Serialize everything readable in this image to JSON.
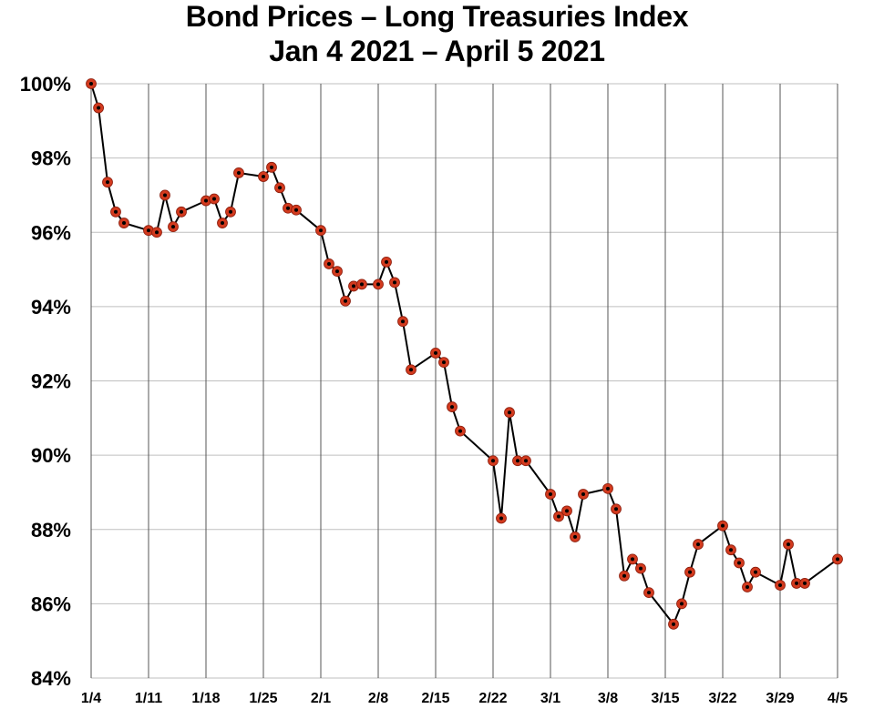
{
  "chart_data": {
    "type": "line",
    "title": "Bond Prices – Long Treasuries Index",
    "subtitle": "Jan 4 2021 – April 5 2021",
    "xlabel": "",
    "ylabel": "",
    "ylim": [
      84,
      100
    ],
    "yticks": [
      84,
      86,
      88,
      90,
      92,
      94,
      96,
      98,
      100
    ],
    "ytick_labels": [
      "84%",
      "86%",
      "88%",
      "90%",
      "92%",
      "94%",
      "96%",
      "98%",
      "100%"
    ],
    "xlim": [
      0,
      91
    ],
    "xticks": [
      0,
      7,
      14,
      21,
      28,
      35,
      42,
      49,
      56,
      63,
      70,
      77,
      84,
      91
    ],
    "xtick_labels": [
      "1/4",
      "1/11",
      "1/18",
      "1/25",
      "2/1",
      "2/8",
      "2/15",
      "2/22",
      "3/1",
      "3/8",
      "3/15",
      "3/22",
      "3/29",
      "4/5"
    ],
    "grid": true,
    "colors": {
      "line": "#000000",
      "marker_fill": "#d23a1e",
      "marker_center": "#000000",
      "grid": "#bfbfbf",
      "vgrid": "#555555"
    },
    "series": [
      {
        "name": "Long Treasuries Index",
        "x": [
          0,
          0.9,
          2,
          3,
          4,
          7,
          8,
          9,
          10,
          11,
          14,
          15,
          16,
          17,
          18,
          21,
          22,
          23,
          24,
          25,
          28,
          29,
          30,
          31,
          32,
          33,
          35,
          36,
          37,
          38,
          39,
          42,
          43,
          44,
          45,
          49,
          50,
          51,
          52,
          53,
          56,
          57,
          58,
          59,
          60,
          63,
          64,
          65,
          66,
          67,
          68,
          71,
          72,
          73,
          74,
          77,
          78,
          79,
          80,
          81,
          84,
          85,
          86,
          87,
          91
        ],
        "y": [
          100,
          99.35,
          97.35,
          96.55,
          96.25,
          96.05,
          96.0,
          97.0,
          96.15,
          96.55,
          96.85,
          96.9,
          96.25,
          96.55,
          97.6,
          97.5,
          97.75,
          97.2,
          96.65,
          96.6,
          96.05,
          95.15,
          94.95,
          94.15,
          94.55,
          94.6,
          94.6,
          95.2,
          94.65,
          93.6,
          92.3,
          92.75,
          92.5,
          91.3,
          90.65,
          89.85,
          88.3,
          91.15,
          89.85,
          89.85,
          88.95,
          88.35,
          88.5,
          87.8,
          88.95,
          89.1,
          88.55,
          86.75,
          87.2,
          86.95,
          86.3,
          85.45,
          86.0,
          86.85,
          87.6,
          88.1,
          87.45,
          87.1,
          86.45,
          86.85,
          86.5,
          87.6,
          86.55,
          86.55,
          87.2
        ]
      }
    ]
  }
}
